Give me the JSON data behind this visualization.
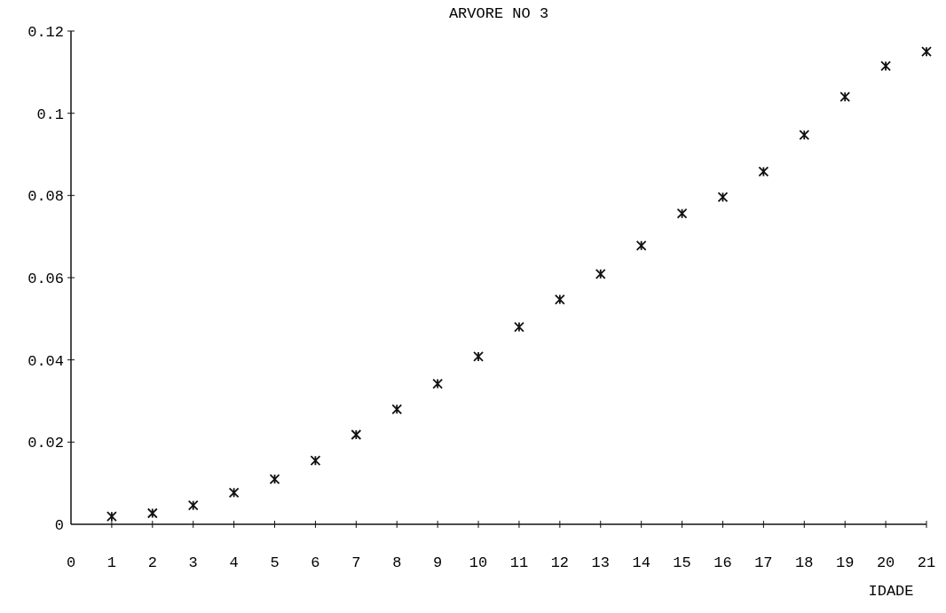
{
  "chart_data": {
    "type": "scatter",
    "title": "ARVORE NO   3",
    "xlabel": "IDADE",
    "x": [
      1,
      2,
      3,
      4,
      5,
      6,
      7,
      8,
      9,
      10,
      11,
      12,
      13,
      14,
      15,
      16,
      17,
      18,
      19,
      20,
      21
    ],
    "values": [
      0.0019,
      0.0027,
      0.0046,
      0.0077,
      0.011,
      0.0155,
      0.0218,
      0.028,
      0.0342,
      0.0408,
      0.048,
      0.0547,
      0.0609,
      0.0678,
      0.0756,
      0.0796,
      0.0858,
      0.0947,
      0.104,
      0.1115,
      0.115
    ],
    "color": "#111111",
    "marker": "cross",
    "xlim": [
      0,
      21
    ],
    "xticks": [
      0,
      1,
      2,
      3,
      4,
      5,
      6,
      7,
      8,
      9,
      10,
      11,
      12,
      13,
      14,
      15,
      16,
      17,
      18,
      19,
      20,
      21
    ],
    "ylim": [
      0,
      0.12
    ],
    "yticks": [
      {
        "value": 0,
        "label": "0"
      },
      {
        "value": 0.02,
        "label": "0.02"
      },
      {
        "value": 0.04,
        "label": "0.04"
      },
      {
        "value": 0.06,
        "label": "0.06"
      },
      {
        "value": 0.08,
        "label": "0.08"
      },
      {
        "value": 0.1,
        "label": "0.1"
      },
      {
        "value": 0.12,
        "label": "0.12"
      }
    ],
    "grid": false
  }
}
